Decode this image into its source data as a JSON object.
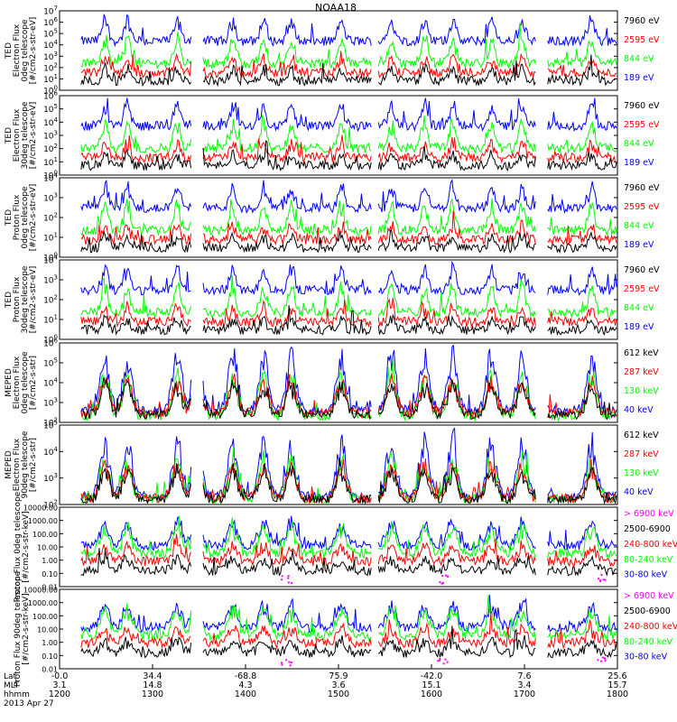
{
  "chart_data": {
    "type": "line",
    "title": "NOAA18",
    "date_label": "2013 Apr 27",
    "x_axis": {
      "row_labels": [
        "Lat",
        "MLT",
        "hhmm"
      ],
      "lat": [
        "-0.0",
        "34.4",
        "-68.8",
        "75.9",
        "-42.0",
        "7.6",
        "25.6"
      ],
      "mlt": [
        "3.1",
        "14.8",
        "4.3",
        "3.6",
        "15.1",
        "3.4",
        "15.7"
      ],
      "hhmm": [
        "1200",
        "1300",
        "1400",
        "1500",
        "1600",
        "1700",
        "1800"
      ]
    },
    "colors": {
      "black": "#000000",
      "red": "#ff0000",
      "green": "#00ff00",
      "blue": "#0000ff",
      "magenta": "#ff00ff"
    },
    "panels": [
      {
        "instrument": "TED",
        "ylabel_lines": [
          "TED",
          "Electron Flux",
          "0deg telescope",
          "[#/cm2-s-str-eV]"
        ],
        "yticks": [
          "10^0",
          "10^1",
          "10^2",
          "10^3",
          "10^4",
          "10^5",
          "10^6",
          "10^7"
        ],
        "ylim": [
          1,
          10000000
        ],
        "log": true,
        "legend": [
          {
            "label": "7960 eV",
            "color": "black"
          },
          {
            "label": "2595 eV",
            "color": "red"
          },
          {
            "label": "844 eV",
            "color": "green"
          },
          {
            "label": "189 eV",
            "color": "blue"
          }
        ]
      },
      {
        "instrument": "TED",
        "ylabel_lines": [
          "TED",
          "Electron Flux",
          "30deg telescope",
          "[#/cm2-s-str-eV]"
        ],
        "yticks": [
          "10^0",
          "10^1",
          "10^2",
          "10^3",
          "10^4",
          "10^5",
          "10^6"
        ],
        "ylim": [
          1,
          1000000
        ],
        "log": true,
        "legend": [
          {
            "label": "7960 eV",
            "color": "black"
          },
          {
            "label": "2595 eV",
            "color": "red"
          },
          {
            "label": "844 eV",
            "color": "green"
          },
          {
            "label": "189 eV",
            "color": "blue"
          }
        ]
      },
      {
        "instrument": "TED",
        "ylabel_lines": [
          "TED",
          "Proton Flux",
          "0deg telescope",
          "[#/cm2-s-str-eV]"
        ],
        "yticks": [
          "10^0",
          "10^1",
          "10^2",
          "10^3",
          "10^4"
        ],
        "ylim": [
          1,
          10000
        ],
        "log": true,
        "legend": [
          {
            "label": "7960 eV",
            "color": "black"
          },
          {
            "label": "2595 eV",
            "color": "red"
          },
          {
            "label": "844 eV",
            "color": "green"
          },
          {
            "label": "189 eV",
            "color": "blue"
          }
        ]
      },
      {
        "instrument": "TED",
        "ylabel_lines": [
          "TED",
          "Proton Flux",
          "30deg telescope",
          "[#/cm2-s-str-eV]"
        ],
        "yticks": [
          "10^0",
          "10^1",
          "10^2",
          "10^3",
          "10^4"
        ],
        "ylim": [
          1,
          10000
        ],
        "log": true,
        "legend": [
          {
            "label": "7960 eV",
            "color": "black"
          },
          {
            "label": "2595 eV",
            "color": "red"
          },
          {
            "label": "844 eV",
            "color": "green"
          },
          {
            "label": "189 eV",
            "color": "blue"
          }
        ]
      },
      {
        "instrument": "MEPED",
        "ylabel_lines": [
          "MEPED",
          "Electron Flux",
          "0deg telescope",
          "[#/cm2-s-str]"
        ],
        "yticks": [
          "10^2",
          "10^3",
          "10^4",
          "10^5",
          "10^6"
        ],
        "ylim": [
          100,
          1000000
        ],
        "log": true,
        "legend": [
          {
            "label": "612 keV",
            "color": "black"
          },
          {
            "label": "287 keV",
            "color": "red"
          },
          {
            "label": "130 keV",
            "color": "green"
          },
          {
            "label": "40 keV",
            "color": "blue"
          }
        ]
      },
      {
        "instrument": "MEPED",
        "ylabel_lines": [
          "MEPED",
          "Electron Flux",
          "90deg telescope",
          "[#/cm2-s-str]"
        ],
        "yticks": [
          "10^2",
          "10^3",
          "10^4",
          "10^5"
        ],
        "ylim": [
          100,
          100000
        ],
        "log": true,
        "legend": [
          {
            "label": "612 keV",
            "color": "black"
          },
          {
            "label": "287 keV",
            "color": "red"
          },
          {
            "label": "130 keV",
            "color": "green"
          },
          {
            "label": "40 keV",
            "color": "blue"
          }
        ]
      },
      {
        "instrument": "MEPED",
        "ylabel_lines": [
          "Proton Flux 0deg telescope",
          "[#/cm2-s-str-keV]"
        ],
        "yticks": [
          "0.01",
          "0.10",
          "1.00",
          "10.00",
          "100.00",
          "1000.00",
          "10000.00"
        ],
        "ylim": [
          0.01,
          10000
        ],
        "log": true,
        "legend": [
          {
            "label": "> 6900 keV",
            "color": "magenta"
          },
          {
            "label": "2500-6900",
            "color": "black"
          },
          {
            "label": "240-800 keV",
            "color": "red"
          },
          {
            "label": "80-240 keV",
            "color": "green"
          },
          {
            "label": "30-80 keV",
            "color": "blue"
          }
        ]
      },
      {
        "instrument": "MEPED",
        "ylabel_lines": [
          "Proton Flux 90deg telescope",
          "[#/cm2-s-str-keV]"
        ],
        "yticks": [
          "0.01",
          "0.10",
          "1.00",
          "10.00",
          "100.00",
          "1000.00",
          "10000.00"
        ],
        "ylim": [
          0.01,
          10000
        ],
        "log": true,
        "legend": [
          {
            "label": "> 6900 keV",
            "color": "magenta"
          },
          {
            "label": "2500-6900",
            "color": "black"
          },
          {
            "label": "240-800 keV",
            "color": "red"
          },
          {
            "label": "80-240 keV",
            "color": "green"
          },
          {
            "label": "30-80 keV",
            "color": "blue"
          }
        ]
      }
    ]
  }
}
